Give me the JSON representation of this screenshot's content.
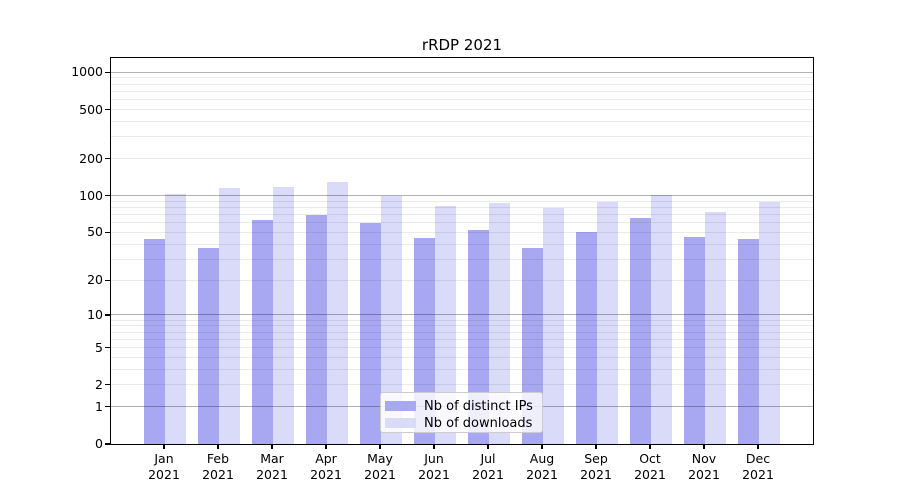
{
  "chart_data": {
    "type": "bar",
    "title": "rRDP 2021",
    "categories": [
      "Jan 2021",
      "Feb 2021",
      "Mar 2021",
      "Apr 2021",
      "May 2021",
      "Jun 2021",
      "Jul 2021",
      "Aug 2021",
      "Sep 2021",
      "Oct 2021",
      "Nov 2021",
      "Dec 2021"
    ],
    "series": [
      {
        "name": "Nb of distinct IPs",
        "color": "#a8a8f2",
        "values": [
          44,
          37,
          63,
          69,
          60,
          45,
          52,
          37,
          50,
          66,
          46,
          44
        ]
      },
      {
        "name": "Nb of downloads",
        "color": "#dadaf9",
        "values": [
          104,
          116,
          118,
          130,
          100,
          82,
          88,
          79,
          89,
          101,
          73,
          89
        ]
      }
    ],
    "yscale": "symlog",
    "yticks": [
      0,
      1,
      2,
      5,
      10,
      20,
      50,
      100,
      200,
      500,
      1000
    ],
    "ylim": [
      0,
      1330
    ],
    "xlabel": "",
    "ylabel": "",
    "grid": true,
    "legend_position": "lower center",
    "colors": {
      "major_gridline": "rgba(0,0,0,0.30)",
      "minor_gridline": "rgba(0,0,0,0.08)",
      "axis": "#000000",
      "legend_border": "#cccccc"
    }
  }
}
